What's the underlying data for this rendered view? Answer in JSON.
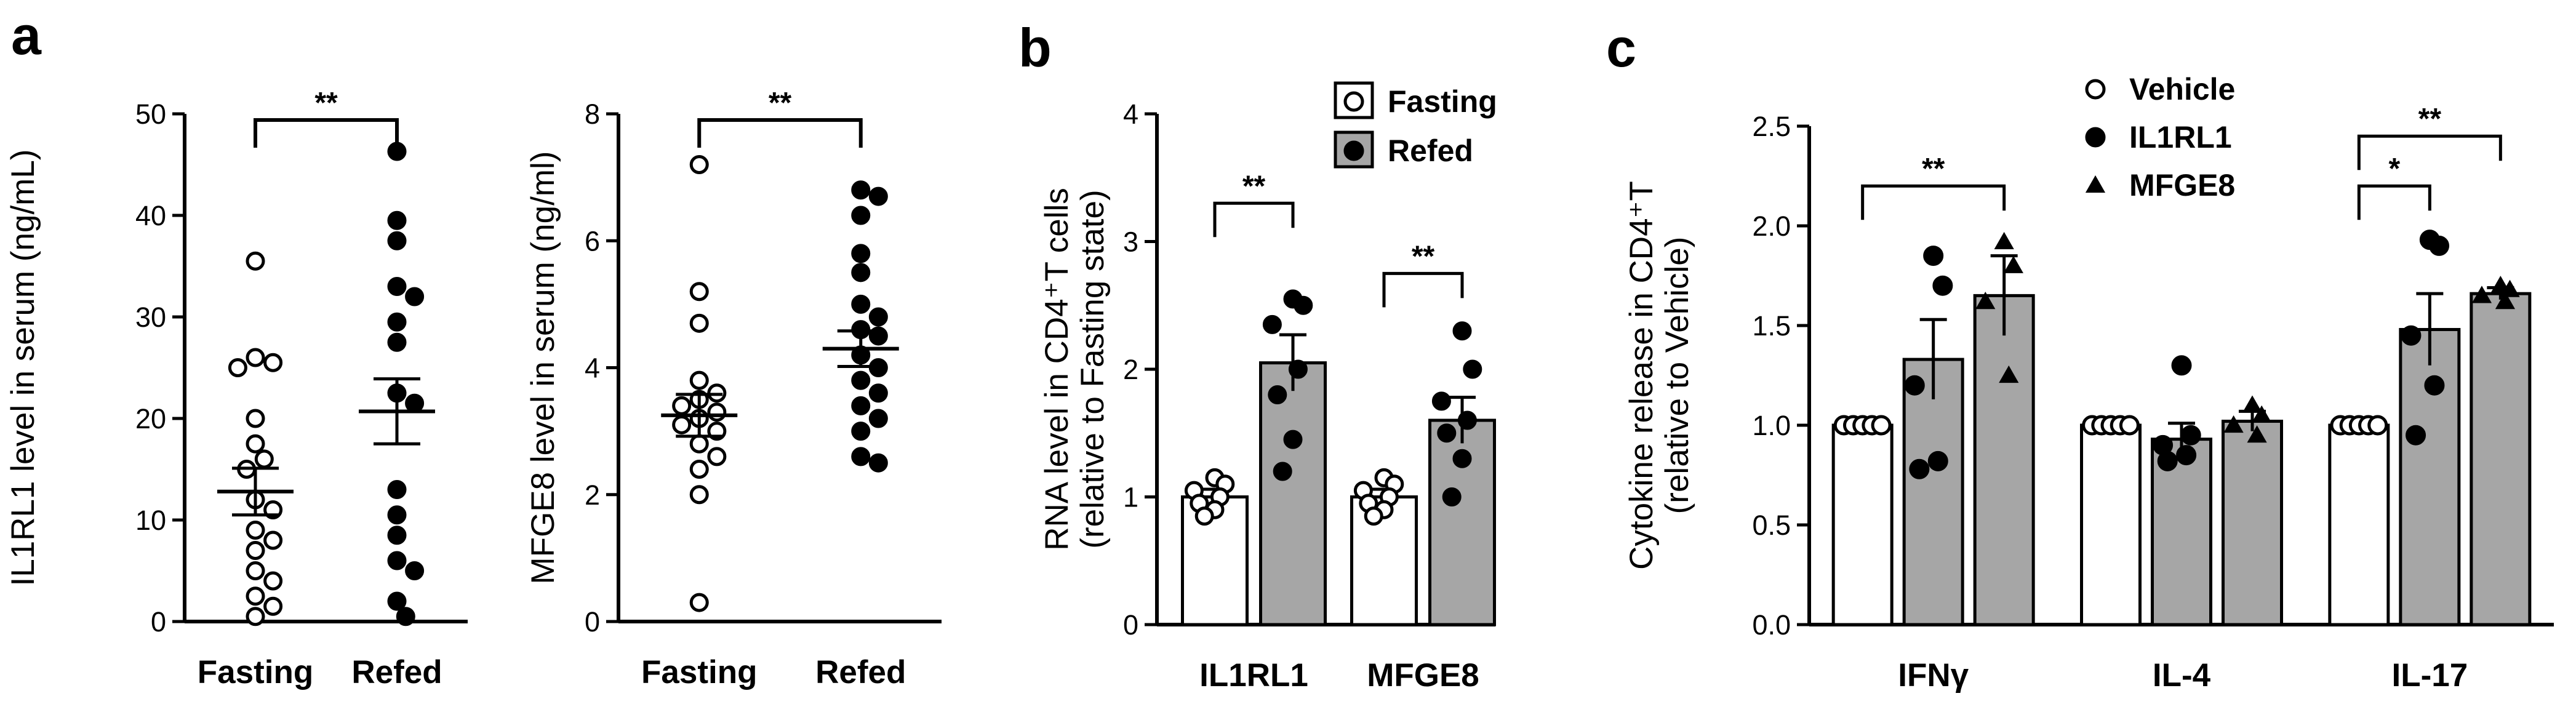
{
  "panel_letters": {
    "a": "a",
    "b": "b",
    "c": "c"
  },
  "colors": {
    "bar_fill": "#a6a6a6",
    "bar_white": "#ffffff",
    "ink": "#000000"
  },
  "chart_data": [
    {
      "id": "a1",
      "type": "scatter",
      "title": "",
      "xlabel": "",
      "ylabel": "IL1RL1 level in serum (ng/mL)",
      "ylim": [
        0,
        50
      ],
      "yticks": [
        0,
        10,
        20,
        30,
        40,
        50
      ],
      "categories": [
        "Fasting",
        "Refed"
      ],
      "series": [
        {
          "name": "Fasting",
          "marker": "open-circle",
          "mean": 12.8,
          "sem": 2.3,
          "values": [
            35.5,
            26,
            25.5,
            25,
            20,
            17.5,
            16,
            15,
            12,
            11,
            9,
            8,
            7,
            5,
            4,
            2.5,
            1.5,
            0.5
          ]
        },
        {
          "name": "Refed",
          "marker": "filled-circle",
          "mean": 20.7,
          "sem": 3.2,
          "values": [
            46.3,
            39.5,
            37.5,
            33,
            32,
            29.5,
            27.5,
            22.5,
            21.5,
            13,
            10.5,
            8.5,
            6,
            5,
            2,
            0.5
          ]
        }
      ],
      "significance": [
        {
          "from": 0,
          "to": 1,
          "label": "**"
        }
      ]
    },
    {
      "id": "a2",
      "type": "scatter",
      "title": "",
      "xlabel": "",
      "ylabel": "MFGE8 level in serum (ng/ml)",
      "ylim": [
        0,
        8
      ],
      "yticks": [
        0,
        2,
        4,
        6,
        8
      ],
      "categories": [
        "Fasting",
        "Refed"
      ],
      "series": [
        {
          "name": "Fasting",
          "marker": "open-circle",
          "mean": 3.25,
          "sem": 0.33,
          "values": [
            7.2,
            5.2,
            4.7,
            3.8,
            3.6,
            3.5,
            3.4,
            3.3,
            3.2,
            3.1,
            3.0,
            2.8,
            2.6,
            2.4,
            2.0,
            0.3
          ]
        },
        {
          "name": "Refed",
          "marker": "filled-circle",
          "mean": 4.3,
          "sem": 0.28,
          "values": [
            6.8,
            6.7,
            6.4,
            5.8,
            5.5,
            5.0,
            4.8,
            4.6,
            4.5,
            4.2,
            4.0,
            3.8,
            3.6,
            3.4,
            3.2,
            3.0,
            2.6,
            2.5
          ]
        }
      ],
      "significance": [
        {
          "from": 0,
          "to": 1,
          "label": "**"
        }
      ]
    },
    {
      "id": "b",
      "type": "bar",
      "title": "",
      "xlabel": "",
      "ylabel_lines": [
        "RNA level in CD4⁺T cells",
        "(relative to Fasting state)"
      ],
      "ylim": [
        0,
        4
      ],
      "yticks": [
        0,
        1,
        2,
        3,
        4
      ],
      "categories": [
        "IL1RL1",
        "MFGE8"
      ],
      "legend": [
        {
          "label": "Fasting",
          "bar": "white",
          "marker": "open-circle"
        },
        {
          "label": "Refed",
          "bar": "gray",
          "marker": "filled-circle"
        }
      ],
      "series": [
        {
          "name": "Fasting",
          "bar": "white",
          "marker": "open-circle",
          "values": [
            1.0,
            1.0
          ],
          "sem": [
            0.06,
            0.06
          ],
          "points": [
            [
              1.15,
              1.1,
              1.05,
              1.0,
              0.95,
              0.9,
              0.85
            ],
            [
              1.15,
              1.1,
              1.05,
              1.0,
              0.95,
              0.9,
              0.85
            ]
          ]
        },
        {
          "name": "Refed",
          "bar": "gray",
          "marker": "filled-circle",
          "values": [
            2.05,
            1.6
          ],
          "sem": [
            0.22,
            0.18
          ],
          "points": [
            [
              2.55,
              2.5,
              2.35,
              2.0,
              1.8,
              1.45,
              1.2
            ],
            [
              2.3,
              2.0,
              1.75,
              1.6,
              1.5,
              1.3,
              1.0
            ]
          ]
        }
      ],
      "significance": [
        {
          "category": 0,
          "label": "**",
          "y": 3.3
        },
        {
          "category": 1,
          "label": "**",
          "y": 2.75
        }
      ]
    },
    {
      "id": "c",
      "type": "bar",
      "title": "",
      "xlabel": "",
      "ylabel_lines": [
        "Cytokine release in CD4⁺T",
        "(relative to Vehicle)"
      ],
      "ylim": [
        0,
        2.5
      ],
      "yticks": [
        "0.0",
        "0.5",
        "1.0",
        "1.5",
        "2.0",
        "2.5"
      ],
      "categories": [
        "IFNγ",
        "IL-4",
        "IL-17"
      ],
      "legend": [
        {
          "label": "Vehicle",
          "marker": "open-circle"
        },
        {
          "label": "IL1RL1",
          "marker": "filled-circle"
        },
        {
          "label": "MFGE8",
          "marker": "filled-triangle"
        }
      ],
      "series": [
        {
          "name": "Vehicle",
          "bar": "white",
          "marker": "open-circle",
          "values": [
            1.0,
            1.0,
            1.0
          ],
          "sem": [
            0,
            0,
            0
          ],
          "points": [
            [
              1,
              1,
              1,
              1,
              1
            ],
            [
              1,
              1,
              1,
              1,
              1
            ],
            [
              1,
              1,
              1,
              1,
              1
            ]
          ]
        },
        {
          "name": "IL1RL1",
          "bar": "gray",
          "marker": "filled-circle",
          "values": [
            1.33,
            0.93,
            1.48
          ],
          "sem": [
            0.2,
            0.08,
            0.18
          ],
          "points": [
            [
              1.85,
              1.7,
              1.2,
              0.82,
              0.78
            ],
            [
              1.3,
              0.95,
              0.9,
              0.85,
              0.82
            ],
            [
              1.93,
              1.9,
              1.45,
              1.2,
              0.95
            ]
          ]
        },
        {
          "name": "MFGE8",
          "bar": "gray",
          "marker": "filled-triangle",
          "values": [
            1.65,
            1.02,
            1.66
          ],
          "sem": [
            0.2,
            0.05,
            0.03
          ],
          "points": [
            [
              1.92,
              1.8,
              1.62,
              1.25
            ],
            [
              1.1,
              1.05,
              1.0,
              0.95
            ],
            [
              1.7,
              1.68,
              1.65,
              1.62
            ]
          ]
        }
      ],
      "significance": [
        {
          "category": 0,
          "from": 0,
          "to": 2,
          "label": "**",
          "y": 2.2
        },
        {
          "category": 2,
          "from": 0,
          "to": 1,
          "label": "*",
          "y": 2.2
        },
        {
          "category": 2,
          "from": 0,
          "to": 2,
          "label": "**",
          "y": 2.45
        }
      ]
    }
  ]
}
